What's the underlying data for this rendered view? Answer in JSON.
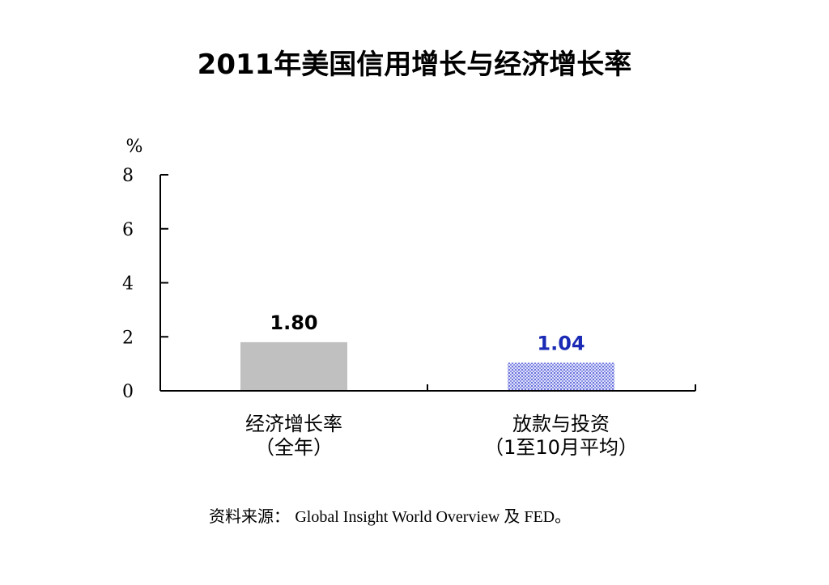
{
  "chart_data": {
    "type": "bar",
    "title": "2011年美国信用增长与经济增长率",
    "ylabel": "%",
    "ylim": [
      0,
      8
    ],
    "yticks": [
      "0",
      "2",
      "4",
      "6",
      "8"
    ],
    "categories": [
      [
        "经济增长率",
        "（全年）"
      ],
      [
        "放款与投资",
        "（1至10月平均）"
      ]
    ],
    "values": [
      1.8,
      1.04
    ],
    "value_labels": [
      "1.80",
      "1.04"
    ],
    "bar_colors": [
      "#c0c0c0",
      "#aab0ec"
    ],
    "value_label_colors": [
      "#000000",
      "#1a2ab5"
    ],
    "bar_patterns": [
      "solid",
      "dotted"
    ],
    "grid": false
  },
  "source": {
    "label": "资料来源：",
    "text": "Global Insight World Overview 及 FED。"
  }
}
